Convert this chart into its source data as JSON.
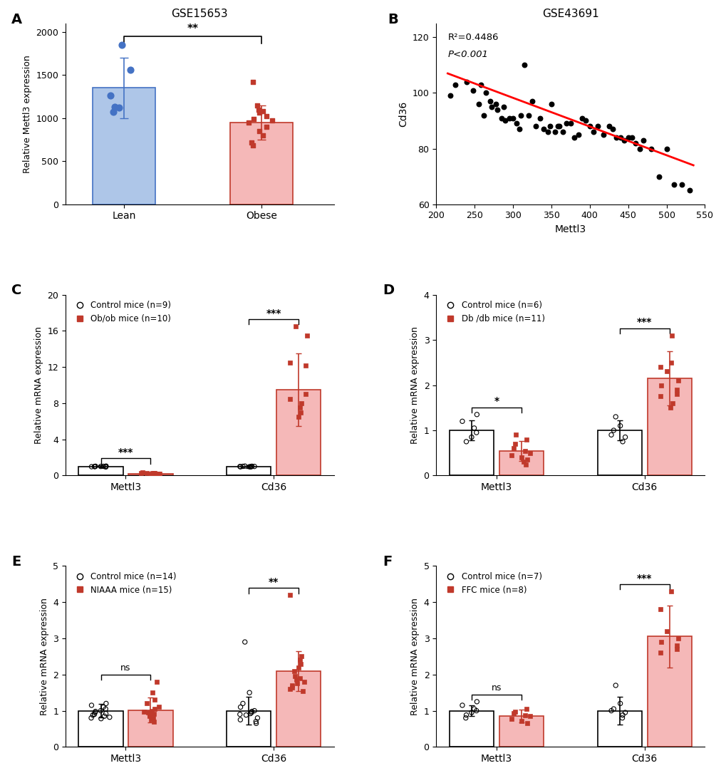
{
  "panel_A": {
    "title": "GSE15653",
    "ylabel": "Relative Mettl3 expression",
    "categories": [
      "Lean",
      "Obese"
    ],
    "bar_means": [
      1350,
      950
    ],
    "bar_errors": [
      350,
      200
    ],
    "bar_colors": [
      "#aec6e8",
      "#f5b8b8"
    ],
    "bar_edge_colors": [
      "#4472c4",
      "#c0392b"
    ],
    "lean_dots": [
      1850,
      1560,
      1260,
      1120,
      1130,
      1070
    ],
    "obese_dots": [
      1420,
      1150,
      1100,
      1080,
      1060,
      1020,
      990,
      970,
      950,
      900,
      850,
      800,
      720,
      680
    ],
    "ylim": [
      0,
      2100
    ],
    "yticks": [
      0,
      500,
      1000,
      1500,
      2000
    ],
    "significance": "**",
    "sig_y": 1950
  },
  "panel_B": {
    "title": "GSE43691",
    "xlabel": "Mettl3",
    "ylabel": "Cd36",
    "xlim": [
      200,
      550
    ],
    "ylim": [
      60,
      125
    ],
    "xticks": [
      200,
      250,
      300,
      350,
      400,
      450,
      500,
      550
    ],
    "yticks": [
      60,
      80,
      100,
      120
    ],
    "r2": "R²=0.4486",
    "pval": "P<0.001",
    "line_x": [
      215,
      535
    ],
    "line_y": [
      107,
      74
    ],
    "scatter_x": [
      218,
      225,
      240,
      248,
      255,
      258,
      262,
      265,
      270,
      272,
      278,
      280,
      285,
      288,
      290,
      295,
      300,
      305,
      308,
      310,
      315,
      320,
      325,
      330,
      335,
      340,
      345,
      348,
      350,
      355,
      358,
      360,
      365,
      370,
      375,
      380,
      385,
      390,
      395,
      400,
      405,
      410,
      418,
      425,
      430,
      435,
      440,
      445,
      450,
      455,
      460,
      465,
      470,
      480,
      490,
      500,
      510,
      520,
      530
    ],
    "scatter_y": [
      99,
      103,
      104,
      101,
      96,
      103,
      92,
      100,
      97,
      95,
      96,
      94,
      91,
      95,
      90,
      91,
      91,
      89,
      87,
      92,
      110,
      92,
      97,
      88,
      91,
      87,
      86,
      88,
      96,
      86,
      88,
      88,
      86,
      89,
      89,
      84,
      85,
      91,
      90,
      88,
      86,
      88,
      85,
      88,
      87,
      84,
      84,
      83,
      84,
      84,
      82,
      80,
      83,
      80,
      70,
      80,
      67,
      67,
      65
    ]
  },
  "panel_C": {
    "ylabel": "Relative mRNA expression",
    "xlabel_groups": [
      "Mettl3",
      "Cd36"
    ],
    "legend_control": "Control mice (n=9)",
    "legend_treat": "Ob/ob mice (n=10)",
    "control_mettl3_mean": 1.0,
    "control_mettl3_err": 0.12,
    "treat_mettl3_mean": 0.22,
    "treat_mettl3_err": 0.1,
    "control_cd36_mean": 1.0,
    "control_cd36_err": 0.15,
    "treat_cd36_mean": 9.5,
    "treat_cd36_err": 4.0,
    "ylim": [
      0,
      20
    ],
    "yticks": [
      0,
      4,
      8,
      12,
      16,
      20
    ],
    "control_mettl3_dots": [
      1.05,
      0.98,
      1.02,
      0.97,
      1.01,
      1.03,
      0.99,
      0.96,
      1.0
    ],
    "treat_mettl3_dots": [
      0.35,
      0.28,
      0.22,
      0.25,
      0.2,
      0.18,
      0.3,
      0.27,
      0.24,
      0.21
    ],
    "control_cd36_dots": [
      1.05,
      0.98,
      1.02,
      0.97,
      1.01,
      1.03,
      0.99,
      0.96,
      1.0
    ],
    "treat_cd36_dots": [
      16.5,
      15.5,
      12.5,
      12.2,
      9.0,
      8.5,
      8.0,
      7.5,
      7.0,
      6.5
    ],
    "sig_mettl3": "***",
    "sig_cd36": "***",
    "bar_color_control": "#ffffff",
    "bar_color_treat": "#f5b8b8",
    "bar_edge_control": "#000000",
    "bar_edge_treat": "#c0392b"
  },
  "panel_D": {
    "ylabel": "Relative mRNA expression",
    "xlabel_groups": [
      "Mettl3",
      "Cd36"
    ],
    "legend_control": "Control mice (n=6)",
    "legend_treat": "Db /db mice (n=11)",
    "control_mettl3_mean": 1.0,
    "control_mettl3_err": 0.22,
    "treat_mettl3_mean": 0.55,
    "treat_mettl3_err": 0.22,
    "control_cd36_mean": 1.0,
    "control_cd36_err": 0.22,
    "treat_cd36_mean": 2.15,
    "treat_cd36_err": 0.6,
    "ylim": [
      0,
      4
    ],
    "yticks": [
      0,
      1,
      2,
      3,
      4
    ],
    "control_mettl3_dots": [
      1.35,
      1.2,
      1.05,
      0.95,
      0.85,
      0.75
    ],
    "treat_mettl3_dots": [
      0.9,
      0.8,
      0.7,
      0.6,
      0.55,
      0.5,
      0.45,
      0.4,
      0.35,
      0.3,
      0.25
    ],
    "control_cd36_dots": [
      1.3,
      1.1,
      1.0,
      0.9,
      0.85,
      0.75
    ],
    "treat_cd36_dots": [
      3.1,
      2.5,
      2.4,
      2.3,
      2.1,
      2.0,
      1.9,
      1.8,
      1.75,
      1.6,
      1.5
    ],
    "sig_mettl3": "*",
    "sig_cd36": "***",
    "bar_color_control": "#ffffff",
    "bar_color_treat": "#f5b8b8",
    "bar_edge_control": "#000000",
    "bar_edge_treat": "#c0392b"
  },
  "panel_E": {
    "ylabel": "Relative mRNA expression",
    "xlabel_groups": [
      "Mettl3",
      "Cd36"
    ],
    "legend_control": "Control mice (n=14)",
    "legend_treat": "NIAAA mice (n=15)",
    "control_mettl3_mean": 1.0,
    "control_mettl3_err": 0.18,
    "treat_mettl3_mean": 1.02,
    "treat_mettl3_err": 0.35,
    "control_cd36_mean": 1.0,
    "control_cd36_err": 0.38,
    "treat_cd36_mean": 2.1,
    "treat_cd36_err": 0.55,
    "ylim": [
      0,
      5
    ],
    "yticks": [
      0,
      1,
      2,
      3,
      4,
      5
    ],
    "control_mettl3_dots": [
      1.2,
      1.15,
      1.1,
      1.05,
      1.0,
      0.98,
      0.95,
      0.92,
      0.9,
      0.88,
      0.85,
      0.82,
      0.8,
      0.78
    ],
    "treat_mettl3_dots": [
      1.8,
      1.5,
      1.3,
      1.2,
      1.1,
      1.05,
      1.0,
      0.98,
      0.95,
      0.92,
      0.88,
      0.85,
      0.8,
      0.75,
      0.7
    ],
    "control_cd36_dots": [
      2.9,
      1.5,
      1.2,
      1.1,
      1.0,
      0.98,
      0.95,
      0.92,
      0.9,
      0.88,
      0.8,
      0.75,
      0.7,
      0.65
    ],
    "treat_cd36_dots": [
      4.2,
      2.5,
      2.4,
      2.3,
      2.2,
      2.1,
      1.95,
      1.9,
      1.85,
      1.8,
      1.75,
      1.7,
      1.65,
      1.6,
      1.55
    ],
    "sig_mettl3": "ns",
    "sig_cd36": "**",
    "bar_color_control": "#ffffff",
    "bar_color_treat": "#f5b8b8",
    "bar_edge_control": "#000000",
    "bar_edge_treat": "#c0392b"
  },
  "panel_F": {
    "ylabel": "Relative mRNA expression",
    "xlabel_groups": [
      "Mettl3",
      "Cd36"
    ],
    "legend_control": "Control mice (n=7)",
    "legend_treat": "FFC mice (n=8)",
    "control_mettl3_mean": 1.0,
    "control_mettl3_err": 0.14,
    "treat_mettl3_mean": 0.85,
    "treat_mettl3_err": 0.18,
    "control_cd36_mean": 1.0,
    "control_cd36_err": 0.38,
    "treat_cd36_mean": 3.05,
    "treat_cd36_err": 0.85,
    "ylim": [
      0,
      5
    ],
    "yticks": [
      0,
      1,
      2,
      3,
      4,
      5
    ],
    "control_mettl3_dots": [
      1.25,
      1.15,
      1.05,
      1.0,
      0.95,
      0.88,
      0.8
    ],
    "treat_mettl3_dots": [
      1.05,
      0.98,
      0.93,
      0.88,
      0.85,
      0.78,
      0.72,
      0.65
    ],
    "control_cd36_dots": [
      1.7,
      1.2,
      1.05,
      1.0,
      0.95,
      0.88,
      0.8
    ],
    "treat_cd36_dots": [
      4.3,
      3.8,
      3.2,
      3.0,
      2.9,
      2.8,
      2.7,
      2.6
    ],
    "sig_mettl3": "ns",
    "sig_cd36": "***",
    "bar_color_control": "#ffffff",
    "bar_color_treat": "#f5b8b8",
    "bar_edge_control": "#000000",
    "bar_edge_treat": "#c0392b"
  }
}
